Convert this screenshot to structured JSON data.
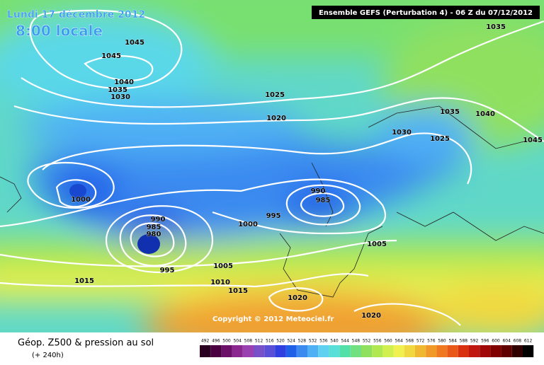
{
  "header": {
    "title": "Lundi 17 décembre 2012",
    "time": "8:00 locale",
    "model": "Ensemble GEFS (Perturbation 4)  -  06 Z du 07/12/2012"
  },
  "copyright": "Copyright © 2012 Meteociel.fr",
  "footer": {
    "title": "Géop. Z500 & pression au sol",
    "lead": "(+ 240h)"
  },
  "isobar_labels": [
    1045,
    1045,
    1040,
    1035,
    1030,
    1025,
    1020,
    1035,
    1035,
    1040,
    1030,
    1025,
    1045,
    1000,
    990,
    985,
    995,
    1000,
    990,
    985,
    980,
    995,
    1005,
    1005,
    1010,
    1015,
    1015,
    1020,
    1020
  ],
  "scale": {
    "values": [
      492,
      496,
      500,
      504,
      508,
      512,
      516,
      520,
      524,
      528,
      532,
      536,
      540,
      544,
      548,
      552,
      556,
      560,
      564,
      568,
      572,
      576,
      580,
      584,
      588,
      592,
      596,
      600,
      604,
      608,
      612
    ],
    "colors": [
      "#2a0020",
      "#4a0040",
      "#6a1068",
      "#8a2890",
      "#9a40b0",
      "#7a50c8",
      "#5a50d8",
      "#3040e0",
      "#2060e8",
      "#3a8af0",
      "#50b0f4",
      "#60d0f0",
      "#58e0d8",
      "#50e0a8",
      "#70e080",
      "#90e060",
      "#b0e850",
      "#d0f050",
      "#f0f050",
      "#f0d840",
      "#f0b830",
      "#f09828",
      "#f07820",
      "#e85818",
      "#d83010",
      "#c01810",
      "#a00808",
      "#800000",
      "#600000",
      "#300000",
      "#000000"
    ]
  }
}
